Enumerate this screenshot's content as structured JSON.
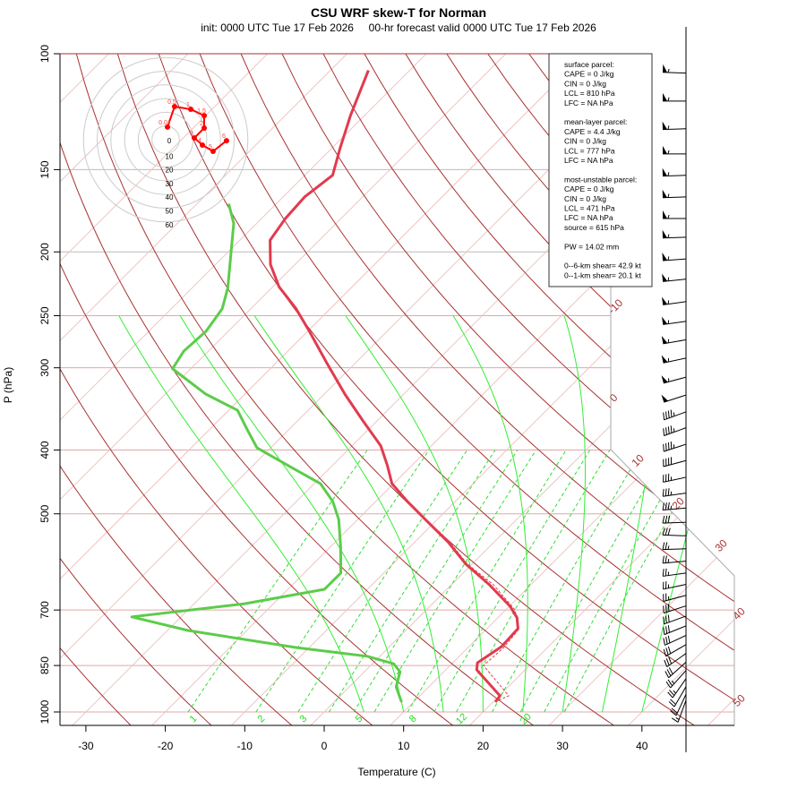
{
  "chart_data": {
    "type": "line",
    "title": "CSU WRF skew-T for Norman",
    "subtitle": "init: 0000 UTC Tue 17 Feb 2026     00-hr forecast valid 0000 UTC Tue 17 Feb 2026",
    "xlabel": "Temperature (C)",
    "ylabel": "P (hPa)",
    "x_ticks": [
      -30,
      -20,
      -10,
      0,
      10,
      20,
      30,
      40
    ],
    "p_ticks": [
      100,
      150,
      200,
      250,
      300,
      400,
      500,
      700,
      850,
      1000
    ],
    "ylim_hpa": [
      1000,
      100
    ],
    "isotherm_labels": [
      "-10",
      "0",
      "10",
      "20",
      "30",
      "40",
      "50"
    ],
    "mixing_ratio_labels": [
      "1",
      "2",
      "3",
      "5",
      "8",
      "12",
      "20"
    ],
    "series": [
      {
        "name": "temperature",
        "color": "#e23a4e",
        "points": [
          [
            966,
            20.3
          ],
          [
            945,
            20.1
          ],
          [
            863,
            13.9
          ],
          [
            842,
            13.1
          ],
          [
            796,
            14.1
          ],
          [
            747,
            13.9
          ],
          [
            719,
            12.4
          ],
          [
            691,
            10.1
          ],
          [
            641,
            4.8
          ],
          [
            596,
            -0.8
          ],
          [
            551,
            -5.9
          ],
          [
            510,
            -11.5
          ],
          [
            479,
            -16.0
          ],
          [
            450,
            -20.2
          ],
          [
            422,
            -23.1
          ],
          [
            394,
            -26.4
          ],
          [
            361,
            -31.8
          ],
          [
            329,
            -37.4
          ],
          [
            295,
            -43.6
          ],
          [
            264,
            -49.8
          ],
          [
            244,
            -54.3
          ],
          [
            226,
            -59.2
          ],
          [
            209,
            -63.1
          ],
          [
            192,
            -66.2
          ],
          [
            178,
            -67.0
          ],
          [
            165,
            -67.3
          ],
          [
            153,
            -66.5
          ],
          [
            139,
            -69.0
          ],
          [
            124,
            -71.8
          ],
          [
            106,
            -75.2
          ]
        ]
      },
      {
        "name": "dewpoint",
        "color": "#5ccc4a",
        "points": [
          [
            966,
            8.5
          ],
          [
            916,
            5.9
          ],
          [
            869,
            4.5
          ],
          [
            845,
            2.7
          ],
          [
            823,
            -1.6
          ],
          [
            798,
            -11.7
          ],
          [
            752,
            -27.4
          ],
          [
            717,
            -36.2
          ],
          [
            685,
            -23.7
          ],
          [
            651,
            -15.4
          ],
          [
            615,
            -15.4
          ],
          [
            560,
            -18.8
          ],
          [
            510,
            -22.4
          ],
          [
            479,
            -25.4
          ],
          [
            450,
            -29.2
          ],
          [
            429,
            -34.0
          ],
          [
            397,
            -41.7
          ],
          [
            372,
            -45.3
          ],
          [
            348,
            -48.9
          ],
          [
            329,
            -54.9
          ],
          [
            301,
            -62.3
          ],
          [
            283,
            -63.1
          ],
          [
            264,
            -62.8
          ],
          [
            244,
            -63.6
          ],
          [
            227,
            -65.5
          ],
          [
            199,
            -69.8
          ],
          [
            181,
            -72.9
          ],
          [
            169,
            -76.0
          ]
        ]
      },
      {
        "name": "virtual-temperature",
        "color": "#e23a4e",
        "style": "dashed",
        "points": [
          [
            960,
            20.5
          ],
          [
            945,
            21.2
          ],
          [
            850,
            14.2
          ],
          [
            800,
            14.5
          ],
          [
            750,
            14.1
          ],
          [
            700,
            11.2
          ],
          [
            640,
            5.2
          ],
          [
            596,
            -0.6
          ],
          [
            551,
            -5.7
          ],
          [
            530,
            -8.5
          ]
        ]
      }
    ],
    "winds_kt": [
      [
        107,
        272,
        55
      ],
      [
        118,
        270,
        55
      ],
      [
        130,
        268,
        55
      ],
      [
        142,
        270,
        55
      ],
      [
        153,
        268,
        55
      ],
      [
        165,
        268,
        55
      ],
      [
        178,
        270,
        55
      ],
      [
        190,
        268,
        55
      ],
      [
        205,
        266,
        55
      ],
      [
        220,
        264,
        55
      ],
      [
        238,
        262,
        55
      ],
      [
        255,
        262,
        55
      ],
      [
        272,
        260,
        55
      ],
      [
        290,
        258,
        55
      ],
      [
        310,
        255,
        55
      ],
      [
        330,
        252,
        50
      ],
      [
        350,
        250,
        45
      ],
      [
        370,
        250,
        45
      ],
      [
        392,
        252,
        45
      ],
      [
        415,
        255,
        40
      ],
      [
        440,
        258,
        35
      ],
      [
        465,
        262,
        35
      ],
      [
        490,
        265,
        35
      ],
      [
        515,
        268,
        30
      ],
      [
        540,
        272,
        30
      ],
      [
        565,
        268,
        25
      ],
      [
        590,
        265,
        25
      ],
      [
        615,
        262,
        25
      ],
      [
        640,
        258,
        25
      ],
      [
        665,
        255,
        25
      ],
      [
        690,
        252,
        30
      ],
      [
        715,
        250,
        30
      ],
      [
        740,
        248,
        30
      ],
      [
        765,
        245,
        30
      ],
      [
        790,
        240,
        30
      ],
      [
        815,
        235,
        30
      ],
      [
        840,
        228,
        30
      ],
      [
        865,
        222,
        25
      ],
      [
        890,
        215,
        25
      ],
      [
        915,
        210,
        20
      ],
      [
        940,
        205,
        20
      ],
      [
        960,
        200,
        15
      ]
    ],
    "hodograph": {
      "ring_labels": [
        "0",
        "10",
        "20",
        "30",
        "40",
        "50",
        "60"
      ],
      "points": [
        {
          "label": "0.01",
          "u": 1.3,
          "v": 9.2
        },
        {
          "label": "0.5",
          "u": 6.5,
          "v": 24.2
        },
        {
          "label": "1",
          "u": 18.3,
          "v": 22.2
        },
        {
          "label": "1.5",
          "u": 28.1,
          "v": 17.6
        },
        {
          "label": "2",
          "u": 28.1,
          "v": 8.5
        },
        {
          "label": "3",
          "u": 20.9,
          "v": 1.3
        },
        {
          "label": "4",
          "u": 26.8,
          "v": -3.9
        },
        {
          "label": "5",
          "u": 34.6,
          "v": -8.5
        },
        {
          "label": "6",
          "u": 44.4,
          "v": -0.7
        }
      ]
    }
  },
  "stats": {
    "lines": [
      "surface parcel:",
      "CAPE = 0 J/kg",
      "CIN = 0 J/kg",
      "LCL = 810 hPa",
      "LFC = NA hPa",
      "",
      "mean-layer parcel:",
      "CAPE = 4.4 J/kg",
      "CIN = 0 J/kg",
      "LCL = 777 hPa",
      "LFC = NA hPa",
      "",
      "most-unstable parcel:",
      "CAPE = 0 J/kg",
      "CIN = 0 J/kg",
      "LCL = 471 hPa",
      "LFC = NA hPa",
      "source = 615 hPa",
      "",
      "PW =  14.02 mm",
      "",
      "0--6-km shear= 42.9 kt",
      "0--1-km shear= 20.1 kt"
    ]
  }
}
